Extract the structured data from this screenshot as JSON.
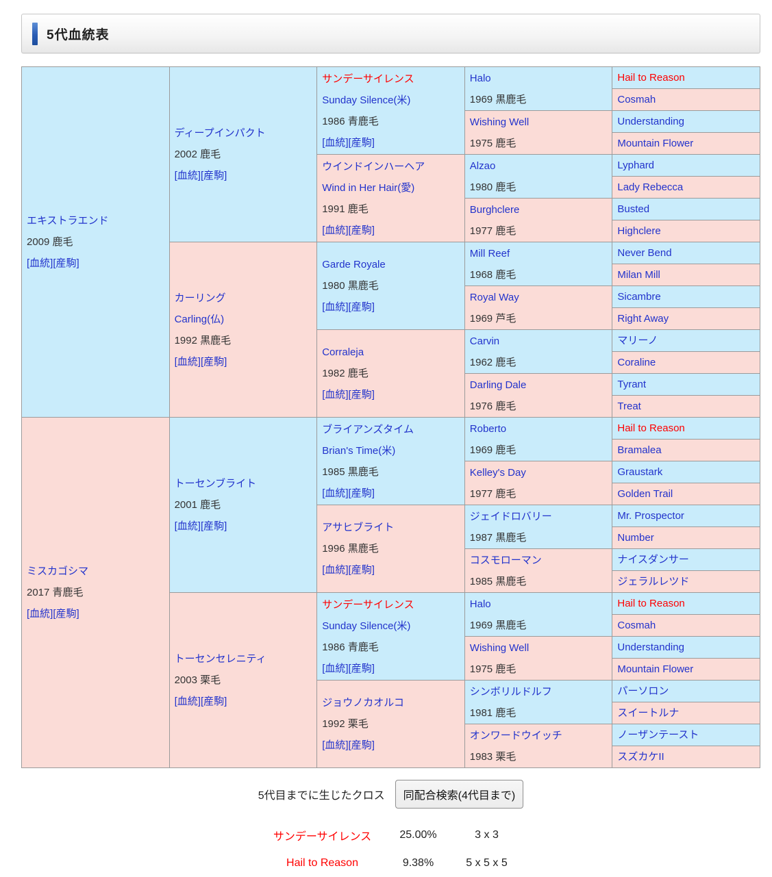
{
  "header": {
    "title": "5代血統表"
  },
  "labels": {
    "blood": "[血統]",
    "offspring": "[産駒]"
  },
  "colors": {
    "sire_cell": "#c9ecfb",
    "dam_cell": "#fbdcd7",
    "link_blue": "#2233cc",
    "cross_red": "#ff0000",
    "grid_border": "#9b9b9b",
    "accent_bar": "#1d4e9e"
  },
  "pedigree": {
    "generations": [
      [
        {
          "name": "エキストラエンド",
          "info": "2009 鹿毛",
          "links": true,
          "bg": "blue"
        },
        {
          "name": "ミスカゴシマ",
          "info": "2017 青鹿毛",
          "links": true,
          "bg": "pink"
        }
      ],
      [
        {
          "name": "ディープインパクト",
          "info": "2002 鹿毛",
          "links": true,
          "bg": "blue"
        },
        {
          "name": "カーリング",
          "sub": "Carling(仏)",
          "info": "1992 黒鹿毛",
          "links": true,
          "bg": "pink"
        },
        {
          "name": "トーセンブライト",
          "info": "2001 鹿毛",
          "links": true,
          "bg": "blue"
        },
        {
          "name": "トーセンセレニティ",
          "info": "2003 栗毛",
          "links": true,
          "bg": "pink"
        }
      ],
      [
        {
          "name": "サンデーサイレンス",
          "red": true,
          "sub": "Sunday Silence(米)",
          "info": "1986 青鹿毛",
          "links": true,
          "bg": "blue"
        },
        {
          "name": "ウインドインハーヘア",
          "sub": "Wind in Her Hair(愛)",
          "info": "1991 鹿毛",
          "links": true,
          "bg": "pink"
        },
        {
          "name": "Garde Royale",
          "info": "1980 黒鹿毛",
          "links": true,
          "bg": "blue"
        },
        {
          "name": "Corraleja",
          "info": "1982 鹿毛",
          "links": true,
          "bg": "pink"
        },
        {
          "name": "ブライアンズタイム",
          "sub": "Brian's Time(米)",
          "info": "1985 黒鹿毛",
          "links": true,
          "bg": "blue"
        },
        {
          "name": "アサヒブライト",
          "info": "1996 黒鹿毛",
          "links": true,
          "bg": "pink"
        },
        {
          "name": "サンデーサイレンス",
          "red": true,
          "sub": "Sunday Silence(米)",
          "info": "1986 青鹿毛",
          "links": true,
          "bg": "blue"
        },
        {
          "name": "ジョウノカオルコ",
          "info": "1992 栗毛",
          "links": true,
          "bg": "pink"
        }
      ],
      [
        {
          "name": "Halo",
          "info": "1969 黒鹿毛",
          "links": false,
          "bg": "blue"
        },
        {
          "name": "Wishing Well",
          "info": "1975 鹿毛",
          "links": false,
          "bg": "pink"
        },
        {
          "name": "Alzao",
          "info": "1980 鹿毛",
          "links": false,
          "bg": "blue"
        },
        {
          "name": "Burghclere",
          "info": "1977 鹿毛",
          "links": false,
          "bg": "pink"
        },
        {
          "name": "Mill Reef",
          "info": "1968 鹿毛",
          "links": false,
          "bg": "blue"
        },
        {
          "name": "Royal Way",
          "info": "1969 芦毛",
          "links": false,
          "bg": "pink"
        },
        {
          "name": "Carvin",
          "info": "1962 鹿毛",
          "links": false,
          "bg": "blue"
        },
        {
          "name": "Darling Dale",
          "info": "1976 鹿毛",
          "links": false,
          "bg": "pink"
        },
        {
          "name": "Roberto",
          "info": "1969 鹿毛",
          "links": false,
          "bg": "blue"
        },
        {
          "name": "Kelley's Day",
          "info": "1977 鹿毛",
          "links": false,
          "bg": "pink"
        },
        {
          "name": "ジェイドロバリー",
          "info": "1987 黒鹿毛",
          "links": false,
          "bg": "blue"
        },
        {
          "name": "コスモローマン",
          "info": "1985 黒鹿毛",
          "links": false,
          "bg": "pink"
        },
        {
          "name": "Halo",
          "info": "1969 黒鹿毛",
          "links": false,
          "bg": "blue"
        },
        {
          "name": "Wishing Well",
          "info": "1975 鹿毛",
          "links": false,
          "bg": "pink"
        },
        {
          "name": "シンボリルドルフ",
          "info": "1981 鹿毛",
          "links": false,
          "bg": "blue"
        },
        {
          "name": "オンワードウイッチ",
          "info": "1983 栗毛",
          "links": false,
          "bg": "pink"
        }
      ],
      [
        {
          "name": "Hail to Reason",
          "red": true,
          "bg": "blue"
        },
        {
          "name": "Cosmah",
          "bg": "pink"
        },
        {
          "name": "Understanding",
          "bg": "blue"
        },
        {
          "name": "Mountain Flower",
          "bg": "pink"
        },
        {
          "name": "Lyphard",
          "bg": "blue"
        },
        {
          "name": "Lady Rebecca",
          "bg": "pink"
        },
        {
          "name": "Busted",
          "bg": "blue"
        },
        {
          "name": "Highclere",
          "bg": "pink"
        },
        {
          "name": "Never Bend",
          "bg": "blue"
        },
        {
          "name": "Milan Mill",
          "bg": "pink"
        },
        {
          "name": "Sicambre",
          "bg": "blue"
        },
        {
          "name": "Right Away",
          "bg": "pink"
        },
        {
          "name": "マリーノ",
          "bg": "blue"
        },
        {
          "name": "Coraline",
          "bg": "pink"
        },
        {
          "name": "Tyrant",
          "bg": "blue"
        },
        {
          "name": "Treat",
          "bg": "pink"
        },
        {
          "name": "Hail to Reason",
          "red": true,
          "bg": "blue"
        },
        {
          "name": "Bramalea",
          "bg": "pink"
        },
        {
          "name": "Graustark",
          "bg": "blue"
        },
        {
          "name": "Golden Trail",
          "bg": "pink"
        },
        {
          "name": "Mr. Prospector",
          "bg": "blue"
        },
        {
          "name": "Number",
          "bg": "pink"
        },
        {
          "name": "ナイスダンサー",
          "bg": "blue"
        },
        {
          "name": "ジェラルレツド",
          "bg": "pink"
        },
        {
          "name": "Hail to Reason",
          "red": true,
          "bg": "blue"
        },
        {
          "name": "Cosmah",
          "bg": "pink"
        },
        {
          "name": "Understanding",
          "bg": "blue"
        },
        {
          "name": "Mountain Flower",
          "bg": "pink"
        },
        {
          "name": "パーソロン",
          "bg": "blue"
        },
        {
          "name": "スイートルナ",
          "bg": "pink"
        },
        {
          "name": "ノーザンテースト",
          "bg": "blue"
        },
        {
          "name": "スズカケII",
          "bg": "pink"
        }
      ]
    ]
  },
  "footer": {
    "cross_label": "5代目までに生じたクロス",
    "search_button": "同配合検索(4代目まで)",
    "crosses": [
      {
        "name": "サンデーサイレンス",
        "percentage": "25.00%",
        "pattern": "3 x 3"
      },
      {
        "name": "Hail to Reason",
        "percentage": "9.38%",
        "pattern": "5 x 5 x 5"
      }
    ]
  }
}
